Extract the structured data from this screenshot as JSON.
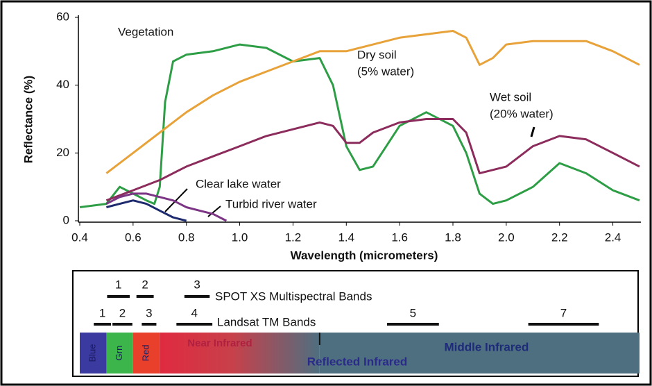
{
  "chart_data": {
    "type": "line",
    "xlabel": "Wavelength (micrometers)",
    "ylabel": "Reflectance (%)",
    "xlim": [
      0.4,
      2.5
    ],
    "ylim": [
      0,
      60
    ],
    "xticks": [
      {
        "value": 0.4,
        "label": "0.4"
      },
      {
        "value": 0.6,
        "label": "0.6"
      },
      {
        "value": 0.8,
        "label": "0.8"
      },
      {
        "value": 1,
        "label": "1.0"
      },
      {
        "value": 1.2,
        "label": "1.2"
      },
      {
        "value": 1.4,
        "label": "1.4"
      },
      {
        "value": 1.6,
        "label": "1.6"
      },
      {
        "value": 1.8,
        "label": "1.8"
      },
      {
        "value": 2,
        "label": "2.0"
      },
      {
        "value": 2.2,
        "label": "2.2"
      },
      {
        "value": 2.4,
        "label": "2.4"
      }
    ],
    "yticks": [
      0,
      20,
      40,
      60
    ],
    "series": [
      {
        "name": "Vegetation",
        "color": "#2e9e46",
        "x": [
          0.4,
          0.5,
          0.55,
          0.6,
          0.65,
          0.68,
          0.7,
          0.72,
          0.75,
          0.8,
          0.9,
          1.0,
          1.1,
          1.2,
          1.3,
          1.35,
          1.4,
          1.45,
          1.5,
          1.6,
          1.7,
          1.8,
          1.85,
          1.9,
          1.95,
          2.0,
          2.1,
          2.2,
          2.3,
          2.4,
          2.5
        ],
        "values": [
          4,
          5,
          10,
          8,
          6,
          5,
          10,
          35,
          47,
          49,
          50,
          52,
          51,
          47,
          48,
          40,
          22,
          15,
          16,
          28,
          32,
          28,
          20,
          8,
          5,
          6,
          10,
          17,
          14,
          9,
          6
        ]
      },
      {
        "name": "Dry soil",
        "note": "(5% water)",
        "color": "#e8a23a",
        "x": [
          0.5,
          0.6,
          0.7,
          0.8,
          0.9,
          1.0,
          1.1,
          1.2,
          1.3,
          1.4,
          1.5,
          1.6,
          1.7,
          1.8,
          1.85,
          1.9,
          1.95,
          2.0,
          2.1,
          2.2,
          2.3,
          2.4,
          2.5
        ],
        "values": [
          14,
          20,
          26,
          32,
          37,
          41,
          44,
          47,
          50,
          50,
          52,
          54,
          55,
          56,
          54,
          46,
          48,
          52,
          53,
          53,
          53,
          50,
          46
        ]
      },
      {
        "name": "Wet soil",
        "note": "(20% water)",
        "color": "#8c2c5c",
        "x": [
          0.5,
          0.6,
          0.7,
          0.8,
          0.9,
          1.0,
          1.1,
          1.2,
          1.3,
          1.35,
          1.4,
          1.45,
          1.5,
          1.6,
          1.7,
          1.8,
          1.85,
          1.9,
          2.0,
          2.1,
          2.2,
          2.3,
          2.4,
          2.5
        ],
        "values": [
          6,
          9,
          12,
          16,
          19,
          22,
          25,
          27,
          29,
          28,
          23,
          23,
          26,
          29,
          30,
          30,
          26,
          14,
          16,
          22,
          25,
          24,
          20,
          16
        ]
      },
      {
        "name": "Clear lake water",
        "color": "#1e2a6e",
        "x": [
          0.5,
          0.55,
          0.6,
          0.65,
          0.7,
          0.75,
          0.8
        ],
        "values": [
          4,
          5,
          6,
          5,
          3,
          1,
          0
        ]
      },
      {
        "name": "Turbid river water",
        "color": "#7c3585",
        "x": [
          0.5,
          0.55,
          0.6,
          0.65,
          0.7,
          0.75,
          0.8,
          0.85,
          0.9,
          0.95
        ],
        "values": [
          5,
          7,
          8,
          8,
          7,
          6,
          4,
          3,
          2,
          0
        ]
      }
    ],
    "band_sets": [
      {
        "name": "SPOT XS Multispectral Bands",
        "bands": [
          {
            "label": "1",
            "range": [
              0.5,
              0.59
            ]
          },
          {
            "label": "2",
            "range": [
              0.61,
              0.68
            ]
          },
          {
            "label": "3",
            "range": [
              0.79,
              0.89
            ]
          }
        ]
      },
      {
        "name": "Landsat TM Bands",
        "bands": [
          {
            "label": "1",
            "range": [
              0.45,
              0.52
            ]
          },
          {
            "label": "2",
            "range": [
              0.52,
              0.6
            ]
          },
          {
            "label": "3",
            "range": [
              0.63,
              0.69
            ]
          },
          {
            "label": "4",
            "range": [
              0.76,
              0.9
            ]
          },
          {
            "label": "5",
            "range": [
              1.55,
              1.75
            ]
          },
          {
            "label": "7",
            "range": [
              2.08,
              2.35
            ]
          }
        ]
      }
    ],
    "regions": [
      {
        "label": "Blue",
        "range": [
          0.4,
          0.5
        ],
        "color": "#3a3aa0"
      },
      {
        "label": "Grn",
        "range": [
          0.5,
          0.6
        ],
        "color": "#3cb54a"
      },
      {
        "label": "Red",
        "range": [
          0.6,
          0.7
        ],
        "color": "#e8402a"
      },
      {
        "label": "Near Infrared",
        "range": [
          0.7,
          1.3
        ],
        "color": "#d8304a"
      },
      {
        "label": "Middle Infrared",
        "range": [
          1.3,
          2.5
        ],
        "color": "#4e6f80"
      }
    ],
    "span_label": "Reflected Infrared"
  }
}
